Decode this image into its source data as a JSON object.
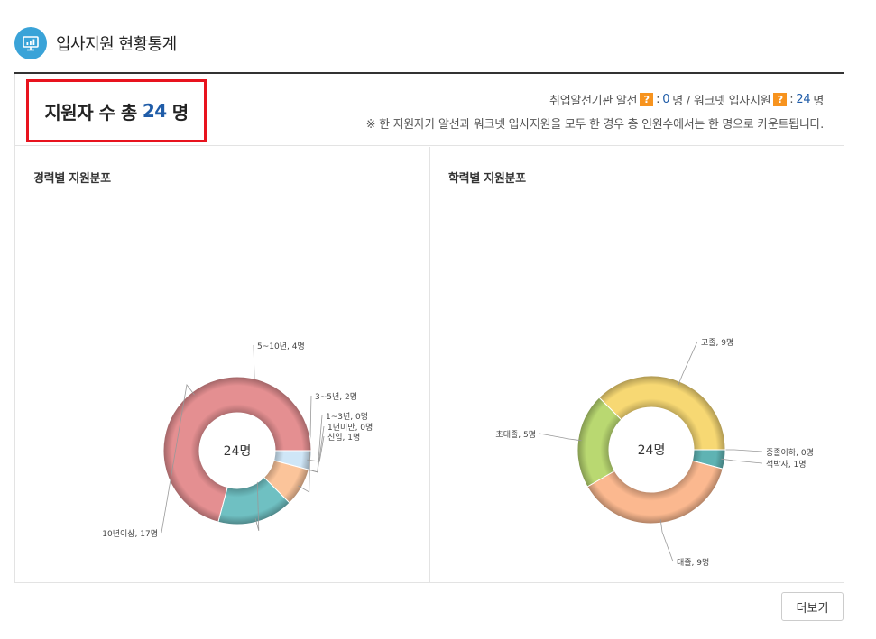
{
  "header": {
    "title": "입사지원 현황통계",
    "icon": "presentation-chart-icon"
  },
  "summary": {
    "total_prefix": "지원자 수 총",
    "total_value": "24",
    "total_unit": "명",
    "agency_label": "취업알선기관 알선",
    "agency_value": "0",
    "agency_unit": "명 /",
    "worknet_label": "워크넷 입사지원",
    "worknet_value": "24",
    "worknet_unit": "명",
    "help_glyph": "?",
    "note": "※ 한 지원자가 알선과 워크넷 입사지원을 모두 한 경우 총 인원수에서는 한 명으로 카운트됩니다."
  },
  "more_button": "더보기",
  "chart_data": [
    {
      "type": "pie",
      "title": "경력별 지원분포",
      "center_label": "24명",
      "slices": [
        {
          "label": "신입, 1명",
          "name": "신입",
          "value": 1,
          "color": "#cfe6f7"
        },
        {
          "label": "1년미만, 0명",
          "name": "1년미만",
          "value": 0,
          "color": "#d8d8d8"
        },
        {
          "label": "1~3년, 0명",
          "name": "1~3년",
          "value": 0,
          "color": "#d8d8d8"
        },
        {
          "label": "3~5년, 2명",
          "name": "3~5년",
          "value": 2,
          "color": "#fbc49a"
        },
        {
          "label": "5~10년, 4명",
          "name": "5~10년",
          "value": 4,
          "color": "#6fc0c2"
        },
        {
          "label": "10년이상, 17명",
          "name": "10년이상",
          "value": 17,
          "color": "#e48f91"
        }
      ]
    },
    {
      "type": "pie",
      "title": "학력별 지원분포",
      "center_label": "24명",
      "slices": [
        {
          "label": "중졸이하, 0명",
          "name": "중졸이하",
          "value": 0,
          "color": "#d8d8d8"
        },
        {
          "label": "석박사, 1명",
          "name": "석박사",
          "value": 1,
          "color": "#5fb3b3"
        },
        {
          "label": "대졸, 9명",
          "name": "대졸",
          "value": 9,
          "color": "#fbb88f"
        },
        {
          "label": "초대졸, 5명",
          "name": "초대졸",
          "value": 5,
          "color": "#b9d871"
        },
        {
          "label": "고졸, 9명",
          "name": "고졸",
          "value": 9,
          "color": "#f7d873"
        }
      ]
    }
  ]
}
